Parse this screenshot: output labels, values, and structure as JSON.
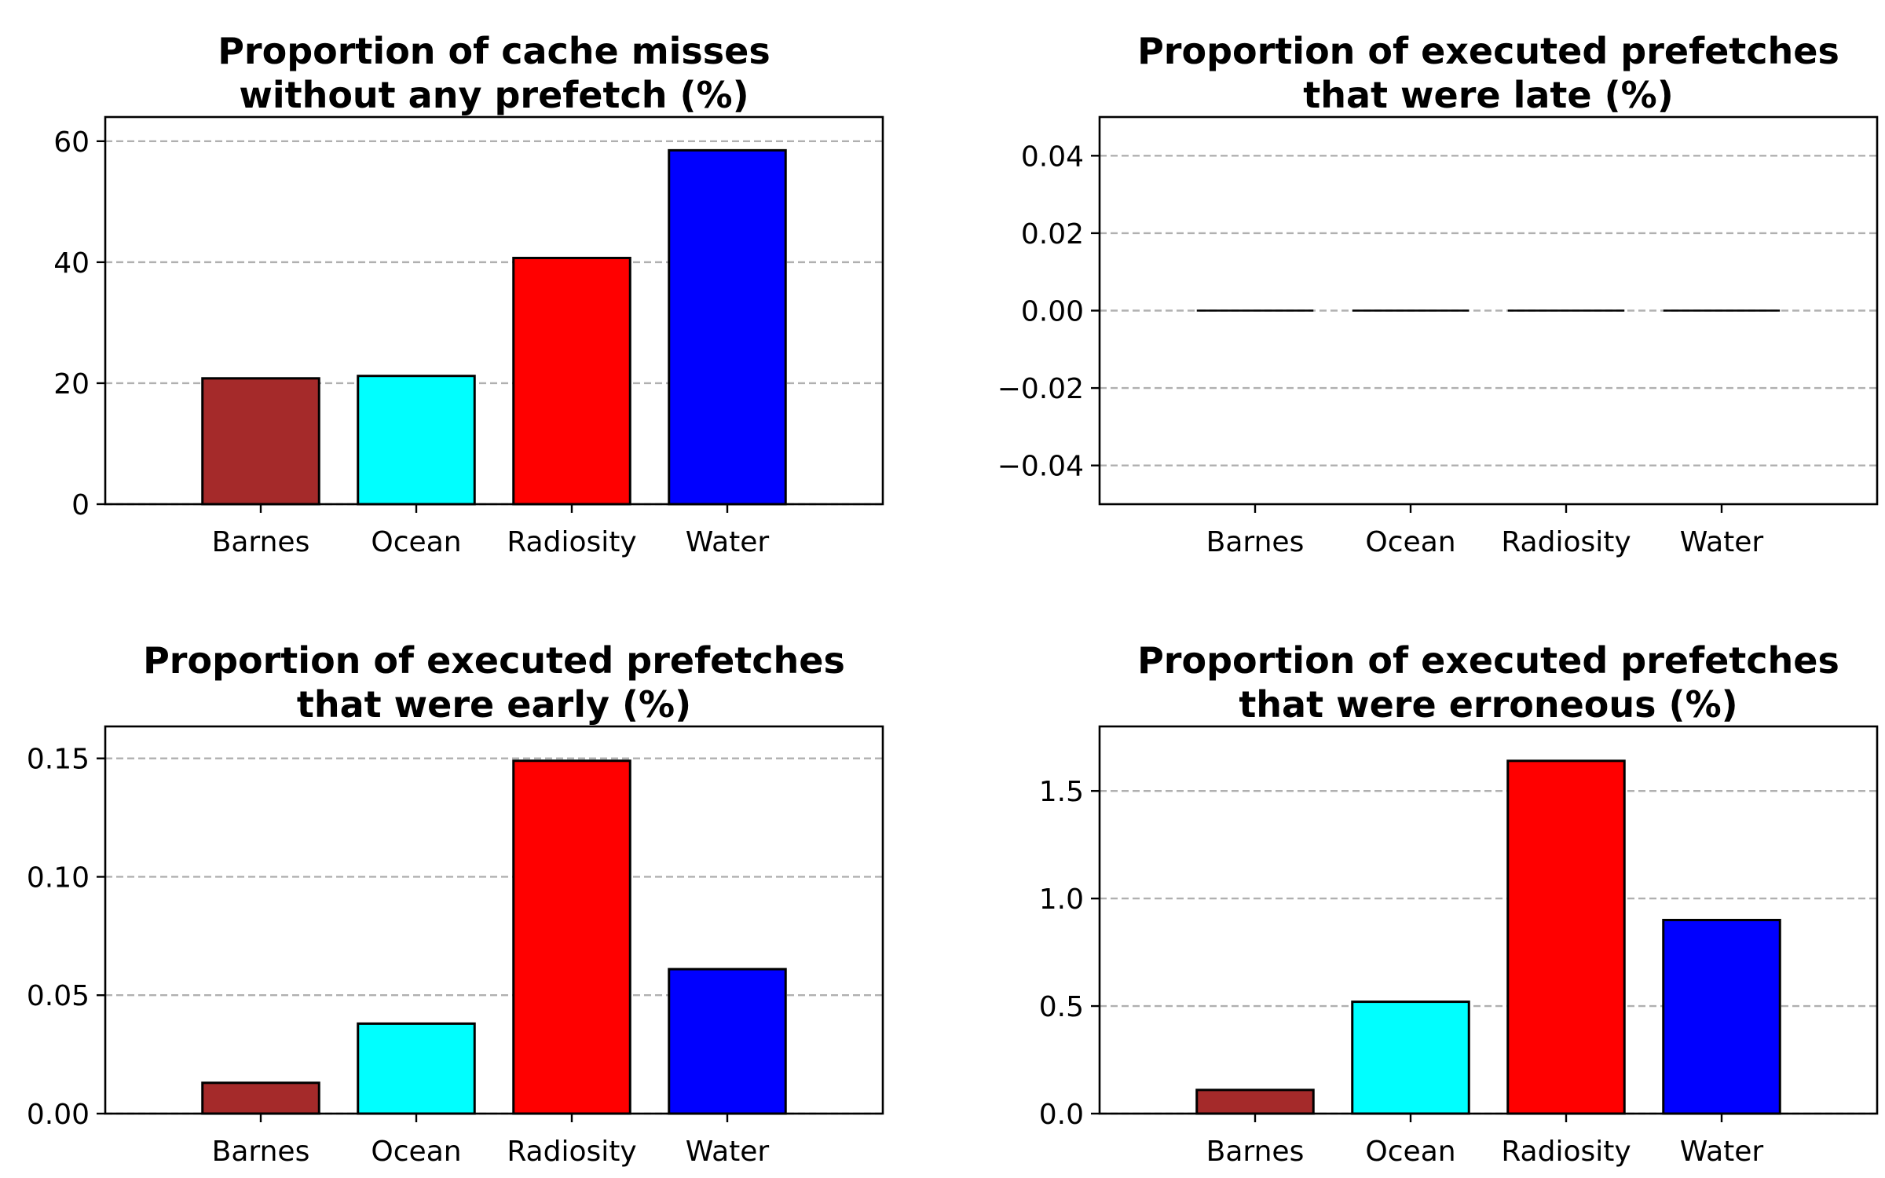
{
  "chart_data": [
    {
      "type": "bar",
      "title_lines": [
        "Proportion of cache misses",
        "without any prefetch (%)"
      ],
      "categories": [
        "Barnes",
        "Ocean",
        "Radiosity",
        "Water"
      ],
      "values": [
        20.8,
        21.2,
        40.7,
        58.5
      ],
      "colors": [
        "#a52a2a",
        "#00ffff",
        "#ff0000",
        "#0000ff"
      ],
      "ylim": [
        0,
        64
      ],
      "yticks": [
        0,
        20,
        40,
        60
      ],
      "ytick_labels": [
        "0",
        "20",
        "40",
        "60"
      ],
      "grid": true
    },
    {
      "type": "bar",
      "title_lines": [
        "Proportion of executed prefetches",
        "that were late (%)"
      ],
      "categories": [
        "Barnes",
        "Ocean",
        "Radiosity",
        "Water"
      ],
      "values": [
        0,
        0,
        0,
        0
      ],
      "colors": [
        "#a52a2a",
        "#00ffff",
        "#ff0000",
        "#0000ff"
      ],
      "ylim": [
        -0.05,
        0.05
      ],
      "yticks": [
        -0.04,
        -0.02,
        0,
        0.02,
        0.04
      ],
      "ytick_labels": [
        "−0.04",
        "−0.02",
        "0.00",
        "0.02",
        "0.04"
      ],
      "grid": true
    },
    {
      "type": "bar",
      "title_lines": [
        "Proportion of executed prefetches",
        "that were early (%)"
      ],
      "categories": [
        "Barnes",
        "Ocean",
        "Radiosity",
        "Water"
      ],
      "values": [
        0.013,
        0.038,
        0.149,
        0.061
      ],
      "colors": [
        "#a52a2a",
        "#00ffff",
        "#ff0000",
        "#0000ff"
      ],
      "ylim": [
        0,
        0.1635
      ],
      "yticks": [
        0,
        0.05,
        0.1,
        0.15
      ],
      "ytick_labels": [
        "0.00",
        "0.05",
        "0.10",
        "0.15"
      ],
      "grid": true
    },
    {
      "type": "bar",
      "title_lines": [
        "Proportion of executed prefetches",
        "that were erroneous (%)"
      ],
      "categories": [
        "Barnes",
        "Ocean",
        "Radiosity",
        "Water"
      ],
      "values": [
        0.11,
        0.52,
        1.64,
        0.9
      ],
      "colors": [
        "#a52a2a",
        "#00ffff",
        "#ff0000",
        "#0000ff"
      ],
      "ylim": [
        0,
        1.8
      ],
      "yticks": [
        0,
        0.5,
        1.0,
        1.5
      ],
      "ytick_labels": [
        "0.0",
        "0.5",
        "1.0",
        "1.5"
      ],
      "grid": true
    }
  ]
}
